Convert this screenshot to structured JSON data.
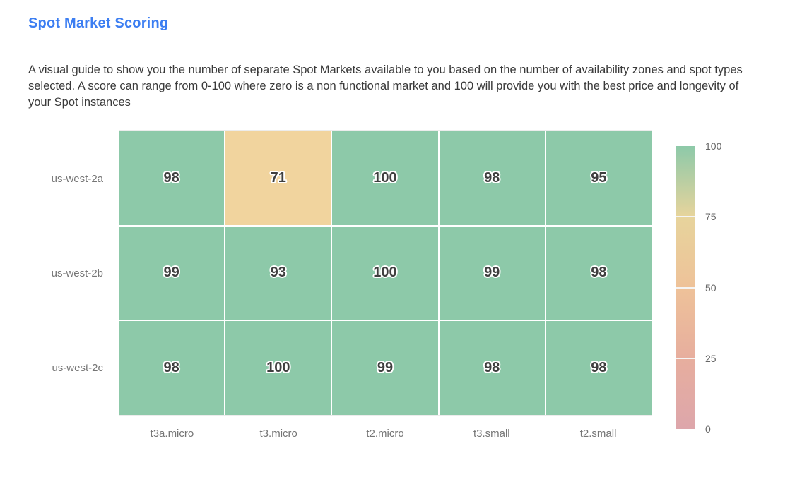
{
  "page": {
    "background": "#ffffff"
  },
  "header": {
    "title": "Spot Market Scoring",
    "title_color": "#3c7ef2",
    "description": "A visual guide to show you the number of separate Spot Markets available to you based on the number of availability zones and spot types selected. A score can range from 0-100 where zero is a non functional market and 100 will provide you with the best price and longevity of your Spot instances"
  },
  "chart_data": {
    "type": "heatmap",
    "title": "",
    "x_categories": [
      "t3a.micro",
      "t3.micro",
      "t2.micro",
      "t3.small",
      "t2.small"
    ],
    "y_categories": [
      "us-west-2a",
      "us-west-2b",
      "us-west-2c"
    ],
    "values": [
      [
        98,
        71,
        100,
        98,
        95
      ],
      [
        99,
        93,
        100,
        99,
        98
      ],
      [
        98,
        100,
        99,
        98,
        98
      ]
    ],
    "value_range": [
      0,
      100
    ],
    "grid_gap_color": "#ffffff",
    "cell_colors": [
      [
        "#8dc9a9",
        "#f1d49e",
        "#8dc9a9",
        "#8dc9a9",
        "#8dc9a9"
      ],
      [
        "#8dc9a9",
        "#8dc9a9",
        "#8dc9a9",
        "#8dc9a9",
        "#8dc9a9"
      ],
      [
        "#8dc9a9",
        "#8dc9a9",
        "#8dc9a9",
        "#8dc9a9",
        "#8dc9a9"
      ]
    ],
    "colorbar": {
      "position": "right",
      "ticks": [
        100,
        75,
        50,
        25,
        0
      ],
      "stops": [
        {
          "value": 100,
          "color": "#8dc9a9"
        },
        {
          "value": 75,
          "color": "#e7d49c"
        },
        {
          "value": 50,
          "color": "#eec299"
        },
        {
          "value": 25,
          "color": "#e7ae9e"
        },
        {
          "value": 0,
          "color": "#dda6ab"
        }
      ]
    }
  }
}
